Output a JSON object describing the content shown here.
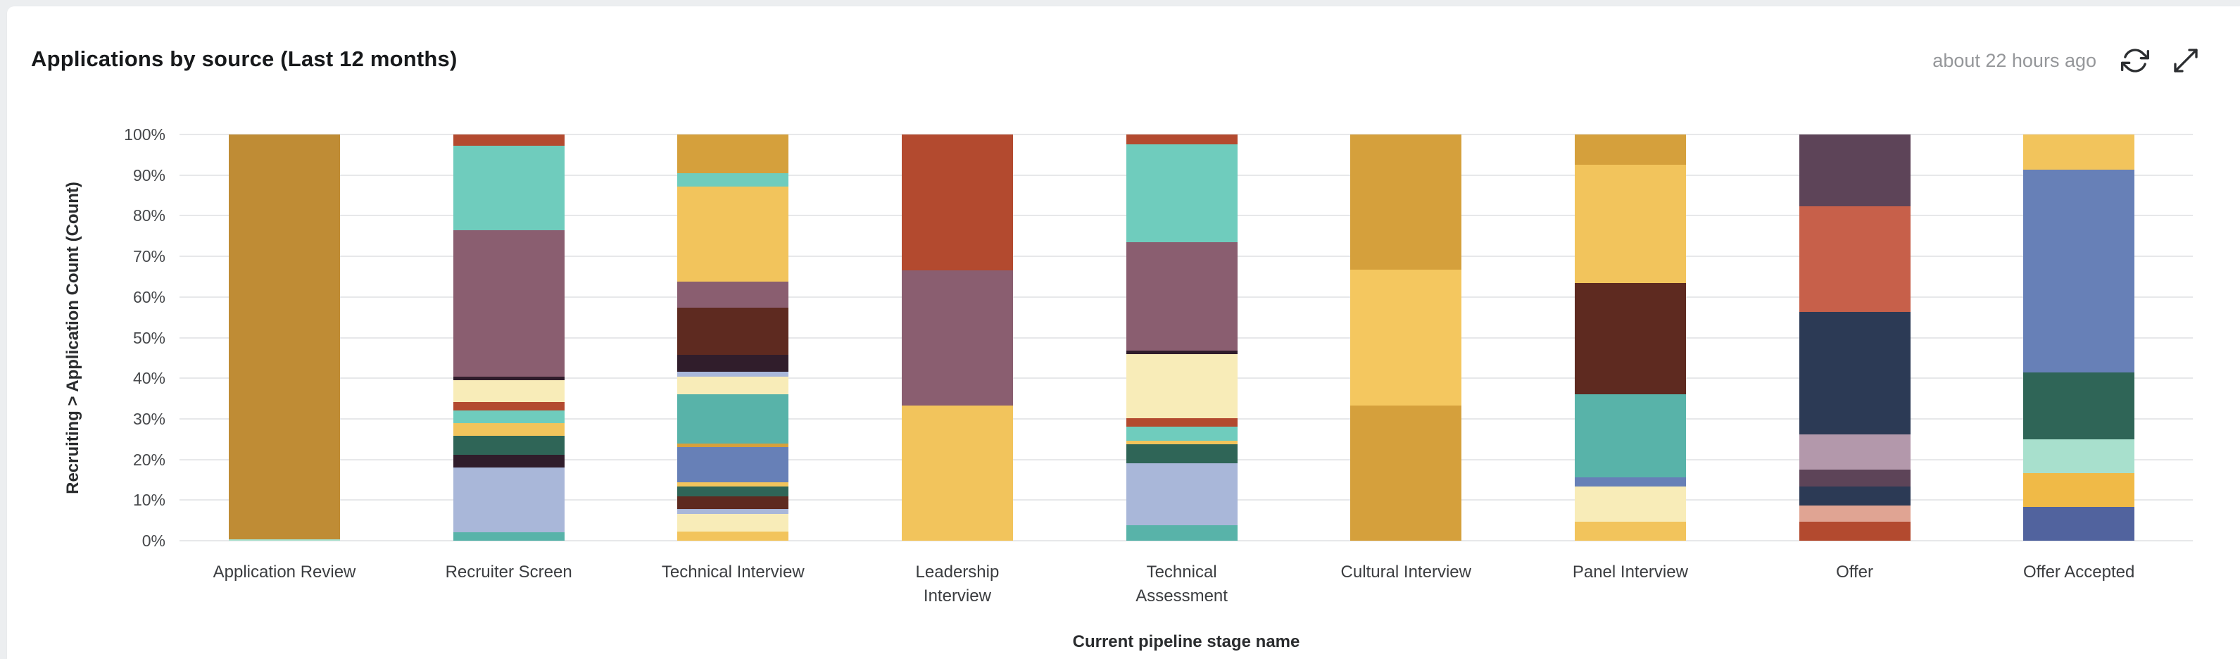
{
  "card": {
    "title": "Applications by source (Last 12 months)",
    "updated": "about 22 hours ago",
    "icons": [
      "refresh-icon",
      "expand-icon"
    ]
  },
  "chart_data": {
    "type": "bar",
    "stacking": "percent",
    "title": "Applications by source (Last 12 months)",
    "xlabel": "Current pipeline stage name",
    "ylabel": "Recruiting > Application Count (Count)",
    "ylim": [
      0,
      100
    ],
    "grid": true,
    "legend": "none",
    "y_ticks": [
      "100%",
      "90%",
      "80%",
      "70%",
      "60%",
      "50%",
      "40%",
      "30%",
      "20%",
      "10%",
      "0%"
    ],
    "categories": [
      "Application Review",
      "Recruiter Screen",
      "Technical Interview",
      "Leadership Interview",
      "Technical Assessment",
      "Cultural Interview",
      "Panel Interview",
      "Offer",
      "Offer Accepted"
    ],
    "bars": [
      {
        "category": "Application Review",
        "label_lines": [
          "Application Review"
        ],
        "segments": [
          {
            "color": "#bf8c35",
            "value": 99.7
          },
          {
            "color": "#a8e0cd",
            "value": 0.3
          }
        ]
      },
      {
        "category": "Recruiter Screen",
        "label_lines": [
          "Recruiter Screen"
        ],
        "segments": [
          {
            "color": "#b34a2f",
            "value": 2.8
          },
          {
            "color": "#6fccbd",
            "value": 20.8
          },
          {
            "color": "#8a5e70",
            "value": 36.0
          },
          {
            "color": "#301d2b",
            "value": 0.9
          },
          {
            "color": "#f8ecb8",
            "value": 5.3
          },
          {
            "color": "#b34a2f",
            "value": 2.1
          },
          {
            "color": "#6fccbd",
            "value": 3.1
          },
          {
            "color": "#f2c45c",
            "value": 3.1
          },
          {
            "color": "#2f6557",
            "value": 4.7
          },
          {
            "color": "#301d2b",
            "value": 3.2
          },
          {
            "color": "#a9b7d9",
            "value": 16.0
          },
          {
            "color": "#58b3a9",
            "value": 2.0
          }
        ]
      },
      {
        "category": "Technical Interview",
        "label_lines": [
          "Technical Interview"
        ],
        "segments": [
          {
            "color": "#d5a03c",
            "value": 9.5
          },
          {
            "color": "#6fccbd",
            "value": 3.3
          },
          {
            "color": "#f2c45c",
            "value": 23.5
          },
          {
            "color": "#8a5e70",
            "value": 6.3
          },
          {
            "color": "#5e2a20",
            "value": 11.6
          },
          {
            "color": "#301d2b",
            "value": 4.2
          },
          {
            "color": "#a9b7d9",
            "value": 1.2
          },
          {
            "color": "#f8ecb8",
            "value": 4.4
          },
          {
            "color": "#58b3a9",
            "value": 12.1
          },
          {
            "color": "#d5a03c",
            "value": 0.8
          },
          {
            "color": "#6780b7",
            "value": 8.7
          },
          {
            "color": "#f2c45c",
            "value": 1.0
          },
          {
            "color": "#2f6557",
            "value": 2.5
          },
          {
            "color": "#5e2a20",
            "value": 3.2
          },
          {
            "color": "#a9b7d9",
            "value": 1.2
          },
          {
            "color": "#f8ecb8",
            "value": 4.2
          },
          {
            "color": "#f2c45c",
            "value": 2.3
          }
        ]
      },
      {
        "category": "Leadership Interview",
        "label_lines": [
          "Leadership",
          "Interview"
        ],
        "segments": [
          {
            "color": "#b34a2f",
            "value": 33.4
          },
          {
            "color": "#8a5e70",
            "value": 33.3
          },
          {
            "color": "#f2c45c",
            "value": 33.3
          }
        ]
      },
      {
        "category": "Technical Assessment",
        "label_lines": [
          "Technical",
          "Assessment"
        ],
        "segments": [
          {
            "color": "#b34a2f",
            "value": 2.5
          },
          {
            "color": "#6fccbd",
            "value": 24.0
          },
          {
            "color": "#8a5e70",
            "value": 26.7
          },
          {
            "color": "#301d2b",
            "value": 0.9
          },
          {
            "color": "#f8ecb8",
            "value": 15.8
          },
          {
            "color": "#b34a2f",
            "value": 2.1
          },
          {
            "color": "#6fccbd",
            "value": 3.4
          },
          {
            "color": "#f2c45c",
            "value": 0.9
          },
          {
            "color": "#2f6557",
            "value": 4.7
          },
          {
            "color": "#a9b7d9",
            "value": 15.2
          },
          {
            "color": "#58b3a9",
            "value": 3.8
          }
        ]
      },
      {
        "category": "Cultural Interview",
        "label_lines": [
          "Cultural Interview"
        ],
        "segments": [
          {
            "color": "#d5a03c",
            "value": 33.3
          },
          {
            "color": "#f4c75f",
            "value": 33.4
          },
          {
            "color": "#d5a03c",
            "value": 33.3
          }
        ]
      },
      {
        "category": "Panel Interview",
        "label_lines": [
          "Panel Interview"
        ],
        "segments": [
          {
            "color": "#d5a03c",
            "value": 7.4
          },
          {
            "color": "#f2c45c",
            "value": 29.2
          },
          {
            "color": "#5e2a20",
            "value": 27.4
          },
          {
            "color": "#58b3a9",
            "value": 20.4
          },
          {
            "color": "#6780b7",
            "value": 2.3
          },
          {
            "color": "#f8ecb8",
            "value": 8.7
          },
          {
            "color": "#f2c45c",
            "value": 4.6
          }
        ]
      },
      {
        "category": "Offer",
        "label_lines": [
          "Offer"
        ],
        "segments": [
          {
            "color": "#5d4458",
            "value": 17.6
          },
          {
            "color": "#c7604a",
            "value": 26.1
          },
          {
            "color": "#2c3a55",
            "value": 30.2
          },
          {
            "color": "#b398ab",
            "value": 8.6
          },
          {
            "color": "#5d4458",
            "value": 4.2
          },
          {
            "color": "#2c3a55",
            "value": 4.6
          },
          {
            "color": "#e0a493",
            "value": 4.0
          },
          {
            "color": "#b34a2f",
            "value": 4.7
          }
        ]
      },
      {
        "category": "Offer Accepted",
        "label_lines": [
          "Offer Accepted"
        ],
        "segments": [
          {
            "color": "#f2c45c",
            "value": 8.6
          },
          {
            "color": "#6780b7",
            "value": 49.9
          },
          {
            "color": "#2f6557",
            "value": 16.5
          },
          {
            "color": "#a8e0cd",
            "value": 8.4
          },
          {
            "color": "#f0ba47",
            "value": 8.2
          },
          {
            "color": "#51639e",
            "value": 8.4
          }
        ]
      }
    ]
  },
  "colors": {
    "page_background": "#eceef0",
    "card_background": "#ffffff",
    "gridline": "#e7e8ea",
    "title_text": "#17191b",
    "axis_text": "#46484b",
    "muted_text": "#95979a",
    "icon": "#2c2e31"
  }
}
